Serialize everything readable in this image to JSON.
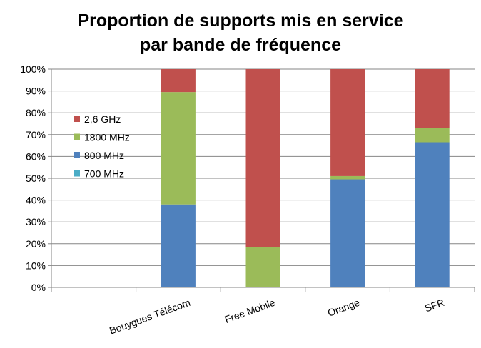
{
  "chart_data": {
    "type": "bar",
    "stacked": true,
    "title": "Proportion de supports mis en service par bande de fréquence",
    "title_lines": [
      "Proportion de supports mis en service",
      "par bande de fréquence"
    ],
    "xlabel": "",
    "ylabel": "",
    "ylim": [
      0,
      100
    ],
    "y_ticks": [
      "0%",
      "10%",
      "20%",
      "30%",
      "40%",
      "50%",
      "60%",
      "70%",
      "80%",
      "90%",
      "100%"
    ],
    "grid": true,
    "legend_position": "left, inside plot",
    "categories": [
      "",
      "Bouygues Télécom",
      "Free Mobile",
      "Orange",
      "SFR"
    ],
    "series": [
      {
        "name": "700 MHz",
        "color": "#4BACC6",
        "values": [
          0,
          0,
          0,
          0,
          0
        ]
      },
      {
        "name": "800 MHz",
        "color": "#4F81BD",
        "values": [
          0,
          38,
          0,
          49.5,
          66.5
        ]
      },
      {
        "name": "1800 MHz",
        "color": "#9BBB59",
        "values": [
          0,
          51.5,
          18.5,
          1.5,
          6.5
        ]
      },
      {
        "name": "2,6 GHz",
        "color": "#C0504D",
        "values": [
          0,
          10.5,
          81.5,
          49,
          27
        ]
      }
    ],
    "legend_order": [
      "2,6 GHz",
      "1800 MHz",
      "800 MHz",
      "700 MHz"
    ]
  }
}
